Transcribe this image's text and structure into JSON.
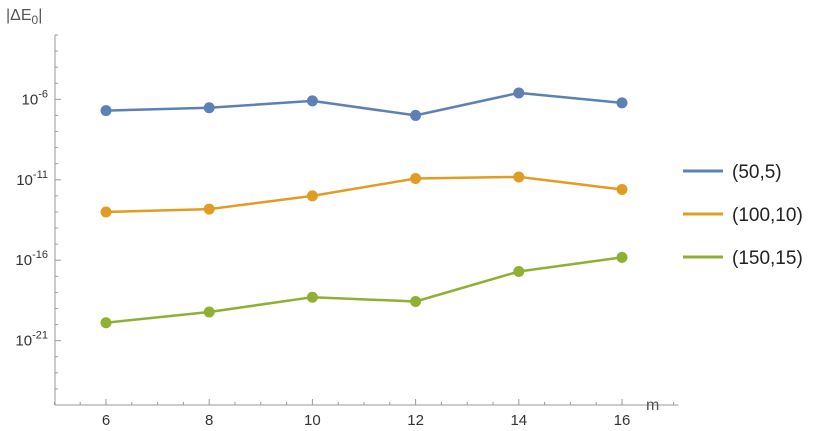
{
  "chart_data": {
    "type": "line",
    "ylabel": "|ΔE",
    "ylabel_sub": "0",
    "ylabel_close": "|",
    "xlabel": "m",
    "yscale": "log",
    "x": [
      6,
      8,
      10,
      12,
      14,
      16
    ],
    "xlim": [
      5,
      17
    ],
    "x_ticks": [
      6,
      8,
      10,
      12,
      14,
      16
    ],
    "ylim": [
      1e-25,
      0.01
    ],
    "y_ticks": [
      {
        "base": "10",
        "exp": "-6",
        "value": 1e-06
      },
      {
        "base": "10",
        "exp": "-11",
        "value": 1e-11
      },
      {
        "base": "10",
        "exp": "-16",
        "value": 1e-16
      },
      {
        "base": "10",
        "exp": "-21",
        "value": 1e-21
      }
    ],
    "grid": false,
    "legend_position": "right",
    "series": [
      {
        "name": "(50,5)",
        "color": "#5e81b5",
        "values": [
          2e-07,
          3e-07,
          8e-07,
          1e-07,
          2.5e-06,
          6e-07
        ]
      },
      {
        "name": "(100,10)",
        "color": "#e19c24",
        "values": [
          1e-13,
          1.5e-13,
          1e-12,
          1.2e-11,
          1.5e-11,
          2.5e-12
        ]
      },
      {
        "name": "(150,15)",
        "color": "#8fb032",
        "values": [
          1.3e-20,
          6e-20,
          5e-19,
          2.7e-19,
          2e-17,
          1.5e-16
        ]
      }
    ]
  }
}
